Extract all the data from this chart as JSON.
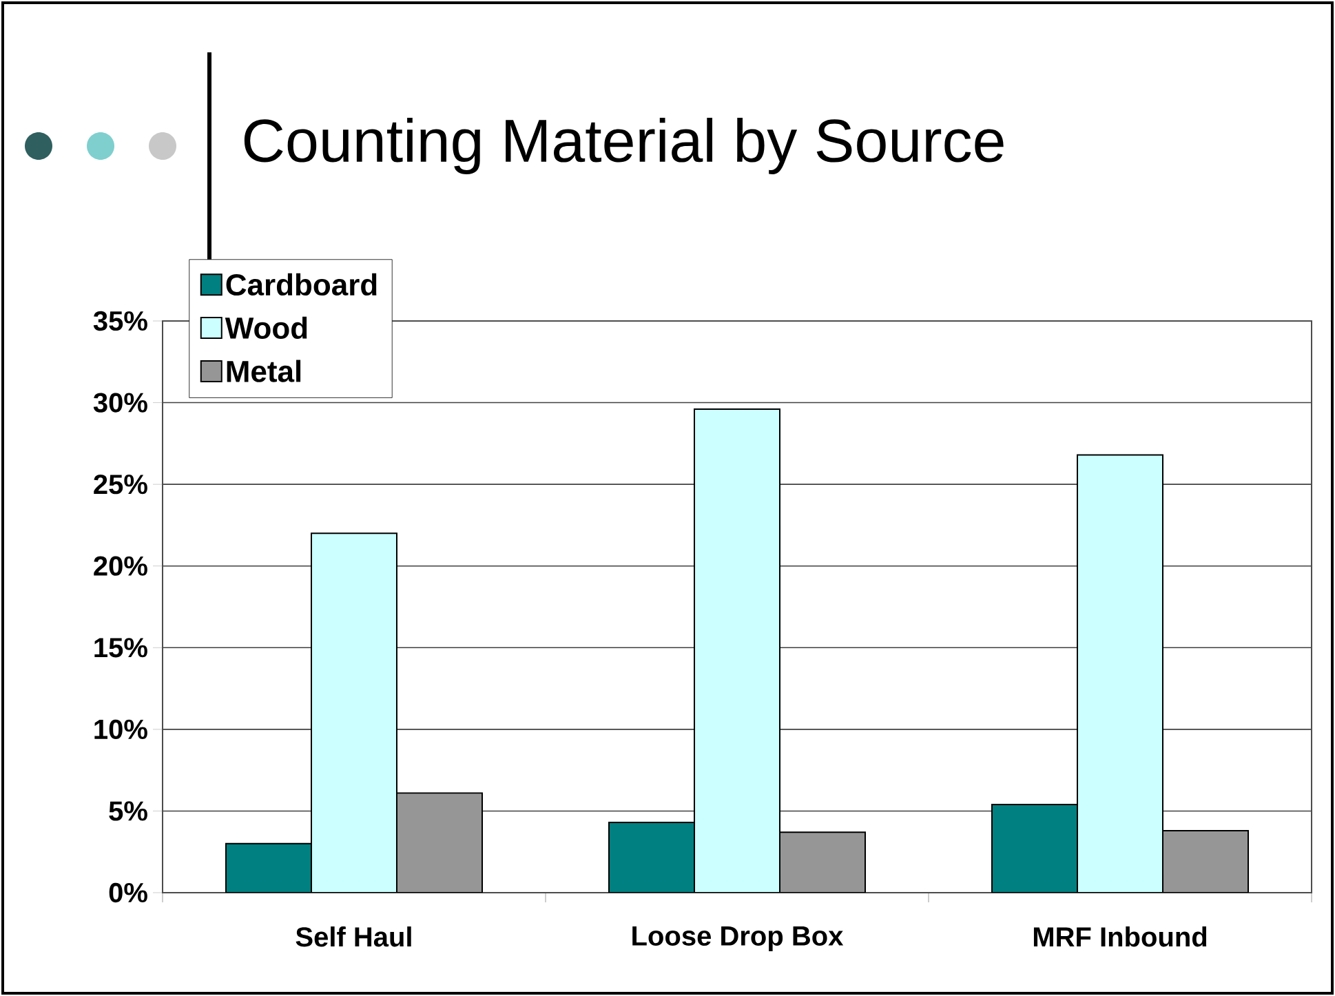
{
  "chart_data": {
    "type": "bar",
    "title": "Counting Material by Source",
    "categories": [
      "Self Haul",
      "Loose Drop Box",
      "MRF Inbound"
    ],
    "series": [
      {
        "name": "Cardboard",
        "color": "#008080",
        "values": [
          3.0,
          4.3,
          5.4
        ]
      },
      {
        "name": "Wood",
        "color": "#ccffff",
        "values": [
          22.0,
          29.6,
          26.8
        ]
      },
      {
        "name": "Metal",
        "color": "#969696",
        "values": [
          6.1,
          3.7,
          3.8
        ]
      }
    ],
    "ylim": [
      0,
      35
    ],
    "yticks": [
      {
        "value": 0,
        "label": "0%"
      },
      {
        "value": 5,
        "label": "5%"
      },
      {
        "value": 10,
        "label": "10%"
      },
      {
        "value": 15,
        "label": "15%"
      },
      {
        "value": 20,
        "label": "20%"
      },
      {
        "value": 25,
        "label": "25%"
      },
      {
        "value": 30,
        "label": "30%"
      },
      {
        "value": 35,
        "label": "35%"
      }
    ],
    "grid": "y",
    "legend": "top left"
  }
}
